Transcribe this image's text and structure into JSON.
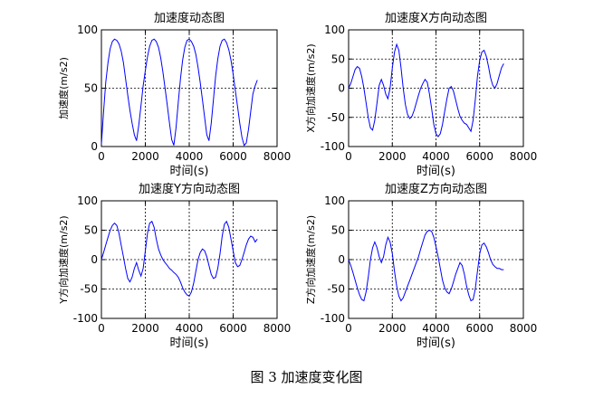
{
  "figure": {
    "caption": "图 3  加速度变化图"
  },
  "chart_data": [
    {
      "type": "line",
      "title": "加速度动态图",
      "xlabel": "时间(s)",
      "ylabel": "加速度(m/s2)",
      "xlim": [
        0,
        8000
      ],
      "ylim": [
        0,
        100
      ],
      "xticks": [
        0,
        2000,
        4000,
        6000,
        8000
      ],
      "yticks": [
        0,
        50,
        100
      ],
      "grid": true,
      "color": "#0000ff",
      "series": [
        {
          "x": [
            0,
            100,
            200,
            300,
            400,
            500,
            600,
            700,
            800,
            900,
            1000,
            1100,
            1200,
            1300,
            1400,
            1500,
            1600,
            1700,
            1800,
            1900,
            2000,
            2100,
            2200,
            2300,
            2400,
            2500,
            2600,
            2700,
            2800,
            2900,
            3000,
            3100,
            3200,
            3300,
            3400,
            3500,
            3600,
            3700,
            3800,
            3900,
            4000,
            4100,
            4200,
            4300,
            4400,
            4500,
            4600,
            4700,
            4800,
            4900,
            5000,
            5100,
            5200,
            5300,
            5400,
            5500,
            5600,
            5700,
            5800,
            5900,
            6000,
            6100,
            6200,
            6300,
            6400,
            6500,
            6600,
            6700,
            6800,
            6900,
            7000,
            7100
          ],
          "y": [
            2,
            30,
            55,
            72,
            84,
            90,
            92,
            91,
            88,
            82,
            72,
            58,
            44,
            31,
            20,
            10,
            5,
            18,
            35,
            52,
            65,
            77,
            86,
            91,
            92,
            90,
            85,
            76,
            64,
            50,
            35,
            20,
            6,
            1,
            16,
            38,
            58,
            74,
            85,
            91,
            92,
            90,
            86,
            79,
            68,
            55,
            40,
            25,
            10,
            5,
            20,
            40,
            60,
            75,
            86,
            91,
            92,
            89,
            83,
            74,
            62,
            48,
            34,
            20,
            8,
            1,
            3,
            15,
            30,
            45,
            52,
            57
          ]
        }
      ]
    },
    {
      "type": "line",
      "title": "加速度X方向动态图",
      "xlabel": "时间(s)",
      "ylabel": "X方向加速度(m/s2)",
      "xlim": [
        0,
        8000
      ],
      "ylim": [
        -100,
        100
      ],
      "xticks": [
        0,
        2000,
        4000,
        6000,
        8000
      ],
      "yticks": [
        -100,
        -50,
        0,
        50,
        100
      ],
      "grid": true,
      "color": "#0000ff",
      "series": [
        {
          "x": [
            0,
            100,
            200,
            300,
            400,
            500,
            600,
            700,
            800,
            900,
            1000,
            1100,
            1200,
            1300,
            1400,
            1500,
            1600,
            1700,
            1800,
            1900,
            2000,
            2100,
            2200,
            2300,
            2400,
            2500,
            2600,
            2700,
            2800,
            2900,
            3000,
            3100,
            3200,
            3300,
            3400,
            3500,
            3600,
            3700,
            3800,
            3900,
            4000,
            4100,
            4200,
            4300,
            4400,
            4500,
            4600,
            4700,
            4800,
            4900,
            5000,
            5100,
            5200,
            5300,
            5400,
            5500,
            5600,
            5700,
            5800,
            5900,
            6000,
            6100,
            6200,
            6300,
            6400,
            6500,
            6600,
            6700,
            6800,
            6900,
            7000,
            7100
          ],
          "y": [
            0,
            8,
            20,
            32,
            37,
            34,
            20,
            0,
            -25,
            -50,
            -68,
            -72,
            -55,
            -25,
            5,
            15,
            5,
            -10,
            -18,
            0,
            35,
            62,
            75,
            65,
            35,
            0,
            -28,
            -45,
            -52,
            -48,
            -38,
            -25,
            -12,
            0,
            8,
            15,
            10,
            -10,
            -35,
            -62,
            -78,
            -83,
            -78,
            -62,
            -40,
            -18,
            0,
            3,
            -5,
            -20,
            -35,
            -48,
            -55,
            -60,
            -62,
            -68,
            -74,
            -55,
            -20,
            20,
            48,
            62,
            65,
            55,
            38,
            18,
            5,
            0,
            8,
            22,
            35,
            42
          ]
        }
      ]
    },
    {
      "type": "line",
      "title": "加速度Y方向动态图",
      "xlabel": "时间(s)",
      "ylabel": "Y方向加速度(m/s2)",
      "xlim": [
        0,
        8000
      ],
      "ylim": [
        -100,
        100
      ],
      "xticks": [
        0,
        2000,
        4000,
        6000,
        8000
      ],
      "yticks": [
        -100,
        -50,
        0,
        50,
        100
      ],
      "grid": true,
      "color": "#0000ff",
      "series": [
        {
          "x": [
            0,
            100,
            200,
            300,
            400,
            500,
            600,
            700,
            800,
            900,
            1000,
            1100,
            1200,
            1300,
            1400,
            1500,
            1600,
            1700,
            1800,
            1900,
            2000,
            2100,
            2200,
            2300,
            2400,
            2500,
            2600,
            2700,
            2800,
            2900,
            3000,
            3100,
            3200,
            3300,
            3400,
            3500,
            3600,
            3700,
            3800,
            3900,
            4000,
            4100,
            4200,
            4300,
            4400,
            4500,
            4600,
            4700,
            4800,
            4900,
            5000,
            5100,
            5200,
            5300,
            5400,
            5500,
            5600,
            5700,
            5800,
            5900,
            6000,
            6100,
            6200,
            6300,
            6400,
            6500,
            6600,
            6700,
            6800,
            6900,
            7000,
            7100
          ],
          "y": [
            0,
            12,
            25,
            38,
            50,
            58,
            62,
            58,
            45,
            25,
            5,
            -15,
            -32,
            -38,
            -30,
            -15,
            -5,
            -18,
            -28,
            -15,
            15,
            45,
            62,
            65,
            55,
            35,
            18,
            8,
            0,
            -5,
            -10,
            -15,
            -18,
            -22,
            -25,
            -30,
            -38,
            -48,
            -55,
            -60,
            -62,
            -55,
            -40,
            -20,
            0,
            12,
            18,
            15,
            5,
            -10,
            -25,
            -32,
            -30,
            -15,
            10,
            40,
            60,
            65,
            55,
            35,
            15,
            -5,
            -12,
            -10,
            0,
            12,
            25,
            35,
            40,
            38,
            30,
            35
          ]
        }
      ]
    },
    {
      "type": "line",
      "title": "加速度Z方向动态图",
      "xlabel": "时间(s)",
      "ylabel": "Z方向加速度(m/s2)",
      "xlim": [
        0,
        8000
      ],
      "ylim": [
        -100,
        100
      ],
      "xticks": [
        0,
        2000,
        4000,
        6000,
        8000
      ],
      "yticks": [
        -100,
        -50,
        0,
        50,
        100
      ],
      "grid": true,
      "color": "#0000ff",
      "series": [
        {
          "x": [
            0,
            100,
            200,
            300,
            400,
            500,
            600,
            700,
            800,
            900,
            1000,
            1100,
            1200,
            1300,
            1400,
            1500,
            1600,
            1700,
            1800,
            1900,
            2000,
            2100,
            2200,
            2300,
            2400,
            2500,
            2600,
            2700,
            2800,
            2900,
            3000,
            3100,
            3200,
            3300,
            3400,
            3500,
            3600,
            3700,
            3800,
            3900,
            4000,
            4100,
            4200,
            4300,
            4400,
            4500,
            4600,
            4700,
            4800,
            4900,
            5000,
            5100,
            5200,
            5300,
            5400,
            5500,
            5600,
            5700,
            5800,
            5900,
            6000,
            6100,
            6200,
            6300,
            6400,
            6500,
            6600,
            6700,
            6800,
            6900,
            7000,
            7100
          ],
          "y": [
            0,
            -10,
            -22,
            -35,
            -48,
            -60,
            -68,
            -70,
            -55,
            -30,
            0,
            20,
            30,
            20,
            5,
            -5,
            5,
            25,
            38,
            30,
            10,
            -20,
            -45,
            -62,
            -70,
            -65,
            -55,
            -45,
            -35,
            -25,
            -15,
            -5,
            5,
            18,
            30,
            42,
            48,
            50,
            48,
            38,
            22,
            5,
            -15,
            -35,
            -48,
            -55,
            -58,
            -50,
            -38,
            -25,
            -15,
            -5,
            -10,
            -25,
            -45,
            -60,
            -70,
            -68,
            -50,
            -20,
            10,
            25,
            28,
            22,
            12,
            0,
            -8,
            -12,
            -15,
            -15,
            -17,
            -17
          ]
        }
      ]
    }
  ]
}
